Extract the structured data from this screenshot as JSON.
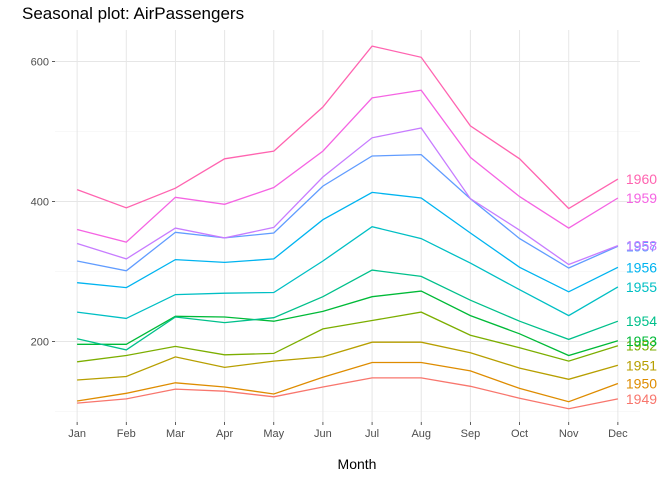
{
  "chart_data": {
    "type": "line",
    "title": "Seasonal plot: AirPassengers",
    "xlabel": "Month",
    "ylabel": "",
    "categories": [
      "Jan",
      "Feb",
      "Mar",
      "Apr",
      "May",
      "Jun",
      "Jul",
      "Aug",
      "Sep",
      "Oct",
      "Nov",
      "Dec"
    ],
    "y_ticks": [
      200,
      400,
      600
    ],
    "ylim": [
      85,
      645
    ],
    "grid": true,
    "legend": "labels at right end of each line",
    "series": [
      {
        "name": "1949",
        "color": "#F8766D",
        "values": [
          112,
          118,
          132,
          129,
          121,
          135,
          148,
          148,
          136,
          119,
          104,
          118
        ]
      },
      {
        "name": "1950",
        "color": "#DE8C00",
        "values": [
          115,
          126,
          141,
          135,
          125,
          149,
          170,
          170,
          158,
          133,
          114,
          140
        ]
      },
      {
        "name": "1951",
        "color": "#B79F00",
        "values": [
          145,
          150,
          178,
          163,
          172,
          178,
          199,
          199,
          184,
          162,
          146,
          166
        ]
      },
      {
        "name": "1952",
        "color": "#7CAE00",
        "values": [
          171,
          180,
          193,
          181,
          183,
          218,
          230,
          242,
          209,
          191,
          172,
          194
        ]
      },
      {
        "name": "1953",
        "color": "#00BA38",
        "values": [
          196,
          196,
          236,
          235,
          229,
          243,
          264,
          272,
          237,
          211,
          180,
          201
        ]
      },
      {
        "name": "1954",
        "color": "#00C08B",
        "values": [
          204,
          188,
          235,
          227,
          234,
          264,
          302,
          293,
          259,
          229,
          203,
          229
        ]
      },
      {
        "name": "1955",
        "color": "#00BFC4",
        "values": [
          242,
          233,
          267,
          269,
          270,
          315,
          364,
          347,
          312,
          274,
          237,
          278
        ]
      },
      {
        "name": "1956",
        "color": "#00B4F0",
        "values": [
          284,
          277,
          317,
          313,
          318,
          374,
          413,
          405,
          355,
          306,
          271,
          306
        ]
      },
      {
        "name": "1957",
        "color": "#619CFF",
        "values": [
          315,
          301,
          356,
          348,
          355,
          422,
          465,
          467,
          404,
          347,
          305,
          336
        ]
      },
      {
        "name": "1958",
        "color": "#C77CFF",
        "values": [
          340,
          318,
          362,
          348,
          363,
          435,
          491,
          505,
          404,
          359,
          310,
          337
        ]
      },
      {
        "name": "1959",
        "color": "#F564E3",
        "values": [
          360,
          342,
          406,
          396,
          420,
          472,
          548,
          559,
          463,
          407,
          362,
          405
        ]
      },
      {
        "name": "1960",
        "color": "#FF64B0",
        "values": [
          417,
          391,
          419,
          461,
          472,
          535,
          622,
          606,
          508,
          461,
          390,
          432
        ]
      }
    ]
  }
}
